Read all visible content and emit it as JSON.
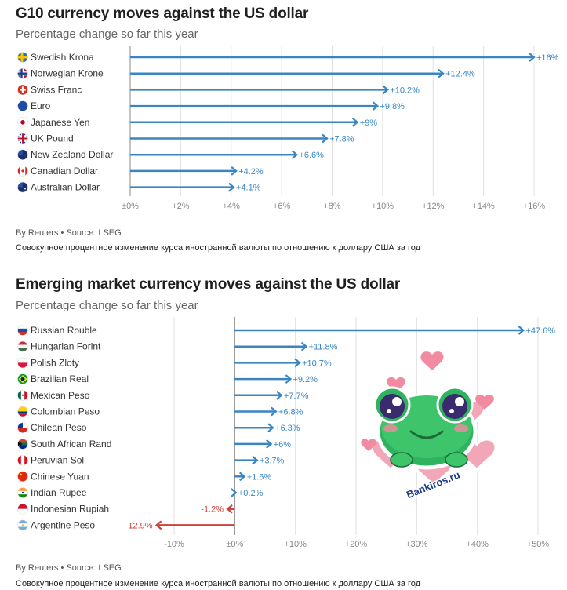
{
  "charts": [
    {
      "title": "G10 currency moves against the US dollar",
      "subtitle": "Percentage change so far this year",
      "source": "By Reuters • Source: LSEG",
      "caption": "Совокупное процентное изменение курса иностранной валюты по отношению к доллару США за год",
      "color_pos": "#3a86c4",
      "color_neg": "#d0413a"
    },
    {
      "title": "Emerging market currency moves against the US dollar",
      "subtitle": "Percentage change so far this year",
      "source": "By Reuters • Source: LSEG",
      "caption": "Совокупное процентное изменение курса иностранной валюты по отношению к доллару США за год",
      "color_pos": "#3a86c4",
      "color_neg": "#d0413a"
    }
  ],
  "chart_data": [
    {
      "type": "bar",
      "orientation": "horizontal",
      "title": "G10 currency moves against the US dollar",
      "subtitle": "Percentage change so far this year",
      "categories": [
        "Swedish Krona",
        "Norwegian Krone",
        "Swiss Franc",
        "Euro",
        "Japanese Yen",
        "UK Pound",
        "New Zealand Dollar",
        "Canadian Dollar",
        "Australian Dollar"
      ],
      "flags": [
        "se",
        "no",
        "ch",
        "eu",
        "jp",
        "gb",
        "nz",
        "ca",
        "au"
      ],
      "values": [
        16,
        12.4,
        10.2,
        9.8,
        9,
        7.8,
        6.6,
        4.2,
        4.1
      ],
      "value_labels": [
        "+16%",
        "+12.4%",
        "+10.2%",
        "+9.8%",
        "+9%",
        "+7.8%",
        "+6.6%",
        "+4.2%",
        "+4.1%"
      ],
      "xlim": [
        0,
        16
      ],
      "xticks": [
        0,
        2,
        4,
        6,
        8,
        10,
        12,
        14,
        16
      ],
      "xtick_labels": [
        "±0%",
        "+2%",
        "+4%",
        "+6%",
        "+8%",
        "+10%",
        "+12%",
        "+14%",
        "+16%"
      ],
      "grid": true
    },
    {
      "type": "bar",
      "orientation": "horizontal",
      "title": "Emerging market currency moves against the US dollar",
      "subtitle": "Percentage change so far this year",
      "categories": [
        "Russian Rouble",
        "Hungarian Forint",
        "Polish Zloty",
        "Brazilian Real",
        "Mexican Peso",
        "Colombian Peso",
        "Chilean Peso",
        "South African Rand",
        "Peruvian Sol",
        "Chinese Yuan",
        "Indian Rupee",
        "Indonesian Rupiah",
        "Argentine Peso"
      ],
      "flags": [
        "ru",
        "hu",
        "pl",
        "br",
        "mx",
        "co",
        "cl",
        "za",
        "pe",
        "cn",
        "in",
        "id",
        "ar"
      ],
      "values": [
        47.6,
        11.8,
        10.7,
        9.2,
        7.7,
        6.8,
        6.3,
        6,
        3.7,
        1.6,
        0.2,
        -1.2,
        -12.9
      ],
      "value_labels": [
        "+47.6%",
        "+11.8%",
        "+10.7%",
        "+9.2%",
        "+7.7%",
        "+6.8%",
        "+6.3%",
        "+6%",
        "+3.7%",
        "+1.6%",
        "+0.2%",
        "-1.2%",
        "-12.9%"
      ],
      "xlim": [
        -10,
        50
      ],
      "xticks": [
        -10,
        0,
        10,
        20,
        30,
        40,
        50
      ],
      "xtick_labels": [
        "-10%",
        "±0%",
        "+10%",
        "+20%",
        "+30%",
        "+40%",
        "+50%"
      ],
      "grid": true
    }
  ],
  "sticker": {
    "text": "Bankiros.ru"
  }
}
